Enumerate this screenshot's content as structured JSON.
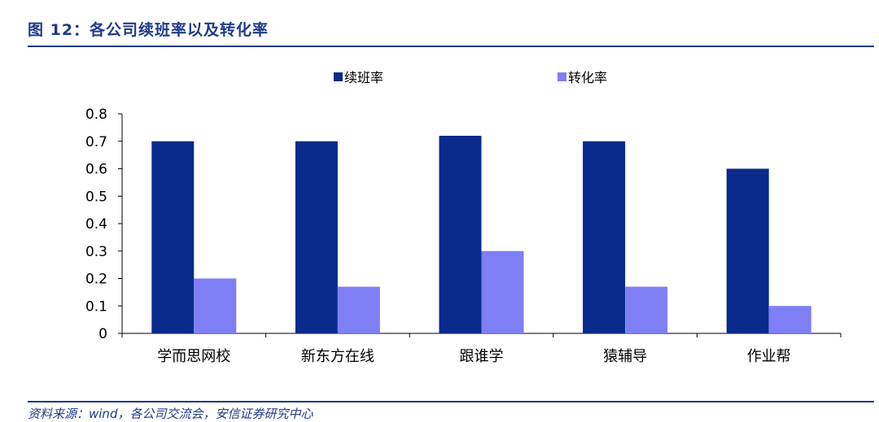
{
  "figure": {
    "title": "图 12：各公司续班率以及转化率",
    "source": "资料来源：wind，各公司交流会，安信证券研究中心"
  },
  "colors": {
    "series1": "#0a2a8c",
    "series2": "#7f7ff5",
    "accent": "#1f3a8a",
    "axis": "#000000"
  },
  "chart_data": {
    "type": "bar",
    "title": "",
    "xlabel": "",
    "ylabel": "",
    "categories": [
      "学而思网校",
      "新东方在线",
      "跟谁学",
      "猿辅导",
      "作业帮"
    ],
    "series": [
      {
        "name": "续班率",
        "values": [
          0.7,
          0.7,
          0.72,
          0.7,
          0.6
        ]
      },
      {
        "name": "转化率",
        "values": [
          0.2,
          0.17,
          0.3,
          0.17,
          0.1
        ]
      }
    ],
    "ylim": [
      0,
      0.8
    ],
    "yticks": [
      "0",
      "0.1",
      "0.2",
      "0.3",
      "0.4",
      "0.5",
      "0.6",
      "0.7",
      "0.8"
    ],
    "grid": false,
    "legend": "top"
  }
}
